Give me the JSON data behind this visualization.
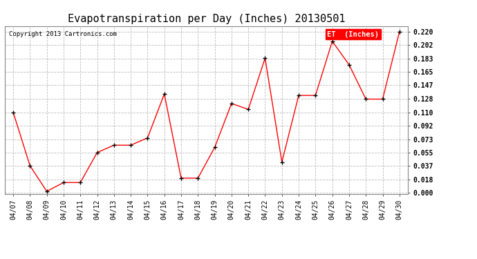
{
  "title": "Evapotranspiration per Day (Inches) 20130501",
  "copyright_text": "Copyright 2013 Cartronics.com",
  "legend_label": "ET  (Inches)",
  "dates": [
    "04/07",
    "04/08",
    "04/09",
    "04/10",
    "04/11",
    "04/12",
    "04/13",
    "04/14",
    "04/15",
    "04/16",
    "04/17",
    "04/18",
    "04/19",
    "04/20",
    "04/21",
    "04/22",
    "04/23",
    "04/24",
    "04/25",
    "04/26",
    "04/27",
    "04/28",
    "04/29",
    "04/30"
  ],
  "values": [
    0.11,
    0.037,
    0.002,
    0.014,
    0.014,
    0.055,
    0.065,
    0.065,
    0.075,
    0.135,
    0.02,
    0.02,
    0.062,
    0.122,
    0.114,
    0.184,
    0.042,
    0.133,
    0.133,
    0.207,
    0.175,
    0.128,
    0.128,
    0.22
  ],
  "yticks": [
    0.0,
    0.018,
    0.037,
    0.055,
    0.073,
    0.092,
    0.11,
    0.128,
    0.147,
    0.165,
    0.183,
    0.202,
    0.22
  ],
  "line_color": "red",
  "marker_color": "black",
  "bg_color": "#ffffff",
  "grid_color": "#bbbbbb",
  "title_fontsize": 11,
  "tick_fontsize": 7,
  "legend_bg": "red",
  "legend_text_color": "white"
}
